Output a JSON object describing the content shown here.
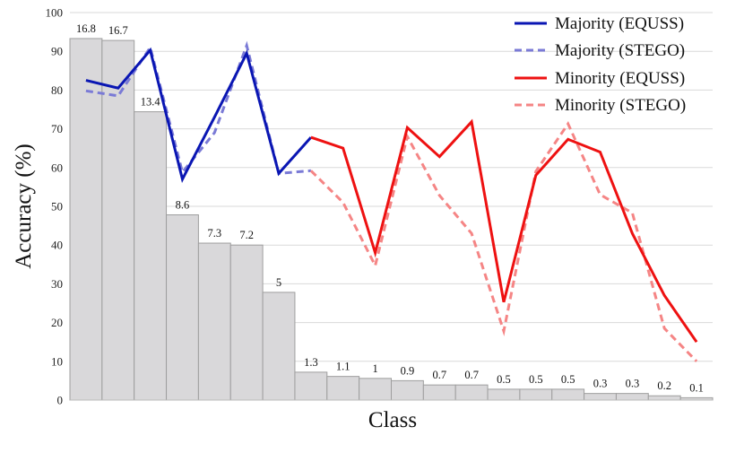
{
  "chart_data": {
    "type": "bar",
    "title": "",
    "xlabel": "Class",
    "ylabel": "Accuracy (%)",
    "ylim": [
      0,
      100
    ],
    "yticks": [
      0,
      10,
      20,
      30,
      40,
      50,
      60,
      70,
      80,
      90,
      100
    ],
    "grid": true,
    "legend_position": "top-right",
    "colors": {
      "bar_fill": "#d9d8da",
      "bar_stroke": "#9e9e9e",
      "majority": "#0a16b3",
      "majority_stego": "#7a7ad6",
      "minority": "#ee1111",
      "minority_stego": "#f58585"
    },
    "class_distribution": {
      "bar_heights": [
        93.3,
        92.8,
        74.4,
        47.8,
        40.5,
        40.0,
        27.8,
        7.2,
        6.1,
        5.6,
        5.0,
        3.9,
        3.9,
        2.8,
        2.8,
        2.8,
        1.7,
        1.7,
        1.1,
        0.6
      ],
      "labels": [
        "16.8",
        "16.7",
        "13.4",
        "8.6",
        "7.3",
        "7.2",
        "5",
        "1.3",
        "1.1",
        "1",
        "0.9",
        "0.7",
        "0.7",
        "0.5",
        "0.5",
        "0.5",
        "0.3",
        "0.3",
        "0.2",
        "0.1"
      ]
    },
    "series": [
      {
        "name": "Majority (EQUSS)",
        "style": "solid",
        "values": [
          82.5,
          80.5,
          90.3,
          57.0,
          73.0,
          89.5,
          58.5,
          67.8,
          null,
          null,
          null,
          null,
          null,
          null,
          null,
          null,
          null,
          null,
          null,
          null
        ]
      },
      {
        "name": "Majority (STEGO)",
        "style": "dashed",
        "values": [
          79.8,
          78.5,
          91.0,
          58.8,
          69.0,
          91.5,
          58.5,
          59.2,
          null,
          null,
          null,
          null,
          null,
          null,
          null,
          null,
          null,
          null,
          null,
          null
        ]
      },
      {
        "name": "Minority (EQUSS)",
        "style": "solid",
        "values": [
          null,
          null,
          null,
          null,
          null,
          null,
          null,
          67.8,
          65.0,
          38.0,
          70.3,
          62.8,
          71.8,
          25.3,
          58.0,
          67.3,
          64.0,
          43.0,
          27.0,
          15.0
        ]
      },
      {
        "name": "Minority (STEGO)",
        "style": "dashed",
        "values": [
          null,
          null,
          null,
          null,
          null,
          null,
          null,
          59.2,
          51.0,
          34.7,
          68.0,
          52.8,
          43.0,
          17.8,
          59.0,
          71.3,
          53.0,
          48.3,
          18.5,
          10.0
        ]
      }
    ]
  }
}
